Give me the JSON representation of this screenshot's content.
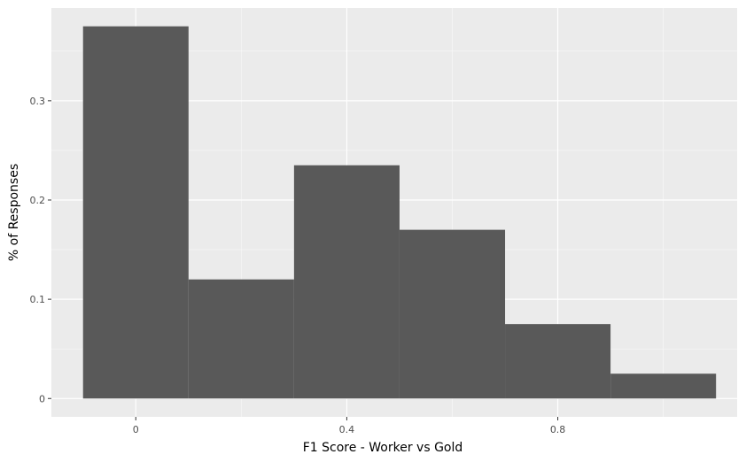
{
  "chart_data": {
    "type": "bar",
    "subtype": "histogram",
    "bins": [
      {
        "x_start": -0.1,
        "x_end": 0.1,
        "value": 0.375
      },
      {
        "x_start": 0.1,
        "x_end": 0.3,
        "value": 0.12
      },
      {
        "x_start": 0.3,
        "x_end": 0.5,
        "value": 0.235
      },
      {
        "x_start": 0.5,
        "x_end": 0.7,
        "value": 0.17
      },
      {
        "x_start": 0.7,
        "x_end": 0.9,
        "value": 0.075
      },
      {
        "x_start": 0.9,
        "x_end": 1.1,
        "value": 0.025
      }
    ],
    "xlabel": "F1 Score - Worker vs Gold",
    "ylabel": "% of Responses",
    "xlim": [
      -0.16,
      1.14
    ],
    "ylim": [
      -0.0185,
      0.3935
    ],
    "x_ticks": [
      {
        "value": 0,
        "label": "0"
      },
      {
        "value": 0.4,
        "label": "0.4"
      },
      {
        "value": 0.8,
        "label": "0.8"
      }
    ],
    "x_minor_ticks": [
      0.2,
      0.6,
      1.0
    ],
    "y_ticks": [
      {
        "value": 0,
        "label": "0"
      },
      {
        "value": 0.1,
        "label": "0.1"
      },
      {
        "value": 0.2,
        "label": "0.2"
      },
      {
        "value": 0.3,
        "label": "0.3"
      }
    ],
    "y_minor_ticks": [
      0.05,
      0.15,
      0.25,
      0.35
    ],
    "grid": true,
    "colors": {
      "panel_background": "#ebebeb",
      "grid_major": "#ffffff",
      "grid_minor": "#f7f7f7",
      "bar_fill": "#595959",
      "tick_text": "#4d4d4d",
      "tick_mark": "#333333"
    }
  }
}
